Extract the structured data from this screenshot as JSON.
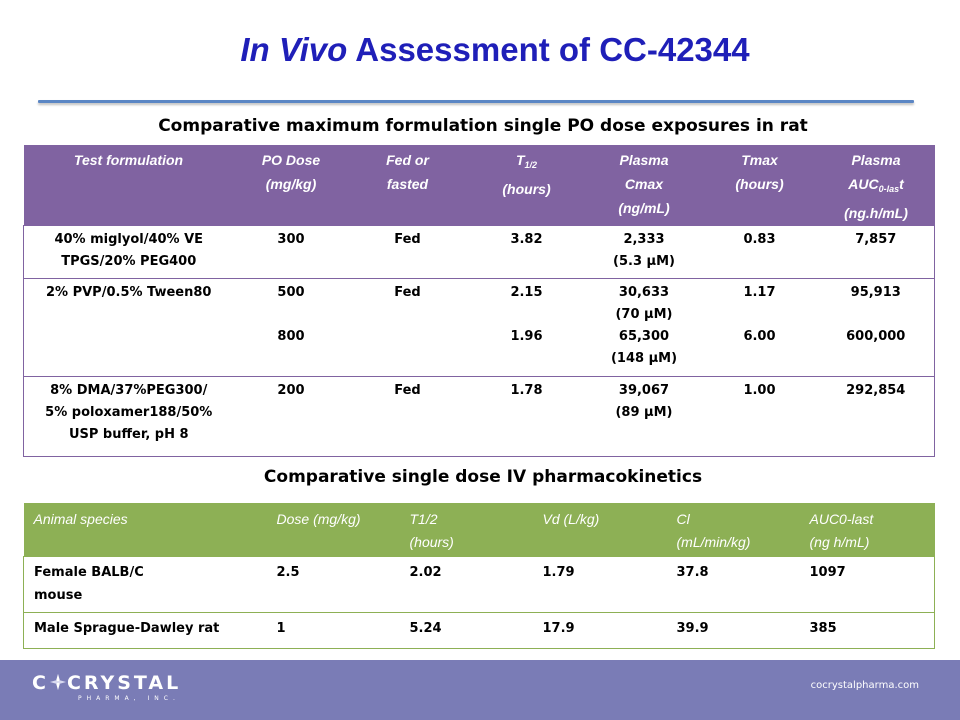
{
  "slide": {
    "title_italic": "In Vivo",
    "title_rest": " Assessment of CC-42344"
  },
  "po_table": {
    "heading": "Comparative maximum formulation single PO dose exposures in rat",
    "headers": {
      "formulation": "Test formulation",
      "dose_1": "PO Dose",
      "dose_2": "(mg/kg)",
      "fed_1": "Fed or",
      "fed_2": "fasted",
      "thalf_main": "T",
      "thalf_sub": "1/2",
      "thalf_2": "(hours)",
      "cmax_1": "Plasma",
      "cmax_2": "Cmax",
      "cmax_3": "(ng/mL)",
      "tmax_1": "Tmax",
      "tmax_2": "(hours)",
      "auc_1": "Plasma",
      "auc_main": "AUC",
      "auc_sub": "0-las",
      "auc_tail": "t",
      "auc_3": "(ng.h/mL)"
    },
    "rows": [
      {
        "formulation_1": "40% miglyol/40% VE",
        "formulation_2": "TPGS/20% PEG400",
        "dose": "300",
        "fed": "Fed",
        "thalf": "3.82",
        "cmax": "2,333",
        "cmax_um": "(5.3 µM)",
        "tmax": "0.83",
        "auc": "7,857"
      },
      {
        "formulation_1": "2% PVP/0.5% Tween80",
        "dose": "500",
        "dose_b": "800",
        "fed": "Fed",
        "thalf": "2.15",
        "thalf_b": "1.96",
        "cmax": "30,633",
        "cmax_um": "(70 µM)",
        "cmax_b": "65,300",
        "cmax_um_b": "(148 µM)",
        "tmax": "1.17",
        "tmax_b": "6.00",
        "auc": "95,913",
        "auc_b": "600,000"
      },
      {
        "formulation_1": "8% DMA/37%PEG300/",
        "formulation_2": "5% poloxamer188/50%",
        "formulation_3": "USP buffer, pH 8",
        "dose": "200",
        "fed": "Fed",
        "thalf": "1.78",
        "cmax": "39,067",
        "cmax_um": "(89 µM)",
        "tmax": "1.00",
        "auc": "292,854"
      }
    ]
  },
  "iv_table": {
    "heading": "Comparative single dose IV pharmacokinetics",
    "headers": {
      "species": "Animal species",
      "dose": "Dose (mg/kg)",
      "thalf_1": "T1/2",
      "thalf_2": "(hours)",
      "vd": "Vd (L/kg)",
      "cl_1": "Cl",
      "cl_2": "(mL/min/kg)",
      "auc_1": "AUC0-last",
      "auc_2": "(ng h/mL)"
    },
    "rows": [
      {
        "species_1": "Female BALB/C",
        "species_2": "mouse",
        "dose": "2.5",
        "thalf": "2.02",
        "vd": "1.79",
        "cl": "37.8",
        "auc": "1097"
      },
      {
        "species_1": "Male Sprague-Dawley rat",
        "dose": "1",
        "thalf": "5.24",
        "vd": "17.9",
        "cl": "39.9",
        "auc": "385"
      }
    ]
  },
  "footer": {
    "logo_prefix": "C",
    "logo_suffix": "CRYSTAL",
    "logo_sub": "PHARMA, INC.",
    "url": "cocrystalpharma.com"
  },
  "colors": {
    "title": "#1f1fb8",
    "po_header": "#8063a1",
    "iv_header": "#8db055",
    "footer": "#7a7cb6"
  }
}
